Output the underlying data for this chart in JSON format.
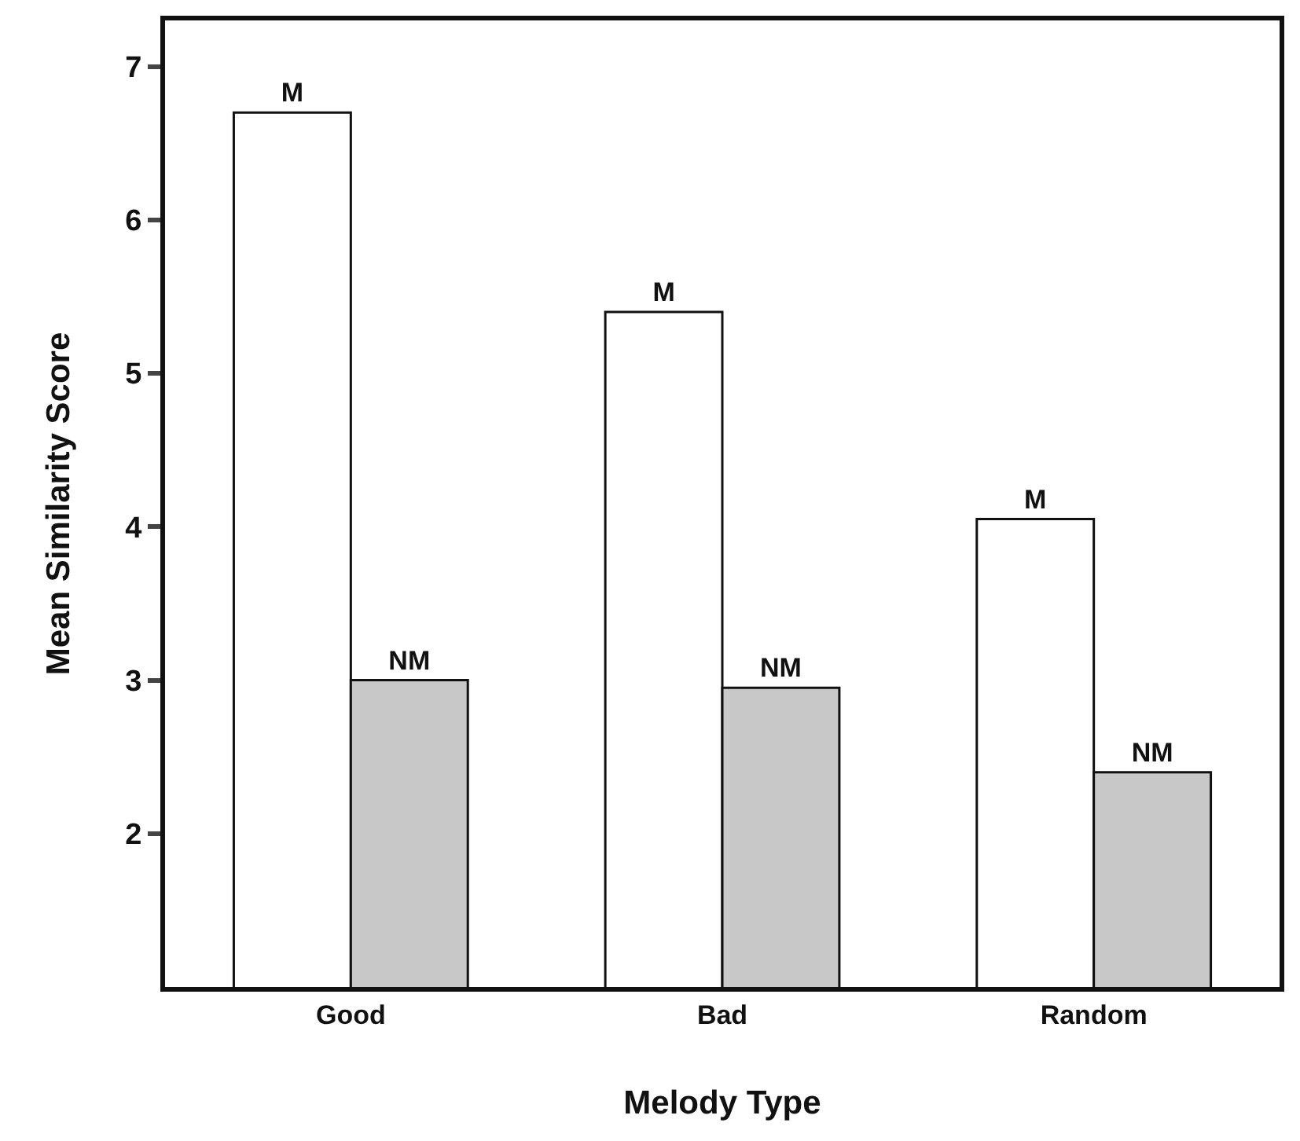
{
  "chart_data": {
    "type": "bar",
    "xlabel": "Melody Type",
    "ylabel": "Mean Similarity Score",
    "categories": [
      "Good",
      "Bad",
      "Random"
    ],
    "series": [
      {
        "name": "M",
        "color": "#ffffff",
        "values": [
          6.7,
          5.4,
          4.05
        ]
      },
      {
        "name": "NM",
        "color": "#c8c8c8",
        "values": [
          3.0,
          2.95,
          2.4
        ]
      }
    ],
    "ylim": [
      1,
      7.3
    ],
    "yticks": [
      2,
      3,
      4,
      5,
      6,
      7
    ],
    "legend": false
  }
}
